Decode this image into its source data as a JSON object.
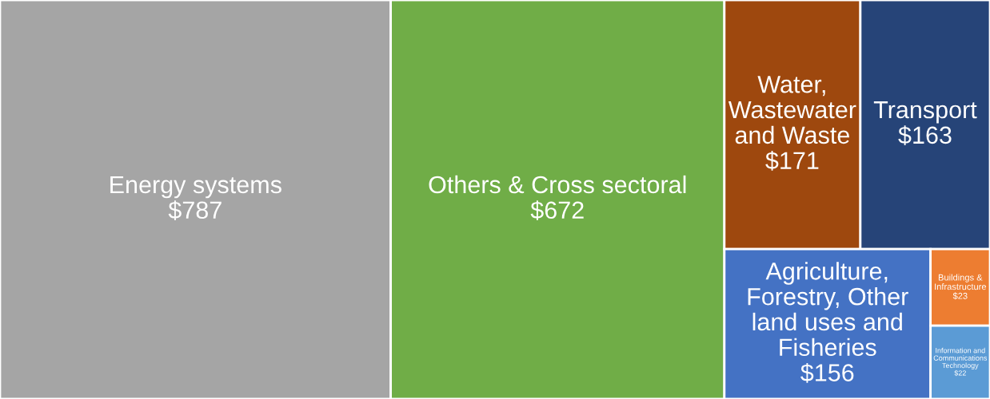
{
  "chart_data": {
    "type": "other",
    "categories": [
      "Energy systems",
      "Others & Cross sectoral",
      "Water, Wastewater and Waste",
      "Transport",
      "Agriculture, Forestry, Other land uses and Fisheries",
      "Buildings & Infrastructure",
      "Information and Communications Technology"
    ],
    "values": [
      787,
      672,
      171,
      163,
      156,
      23,
      22
    ],
    "value_labels": [
      "$787",
      "$672",
      "$171",
      "$163",
      "$156",
      "$23",
      "$22"
    ],
    "colors": [
      "#a5a5a5",
      "#70ad47",
      "#9e480e",
      "#264478",
      "#4472c4",
      "#ed7d31",
      "#5b9bd5"
    ]
  }
}
